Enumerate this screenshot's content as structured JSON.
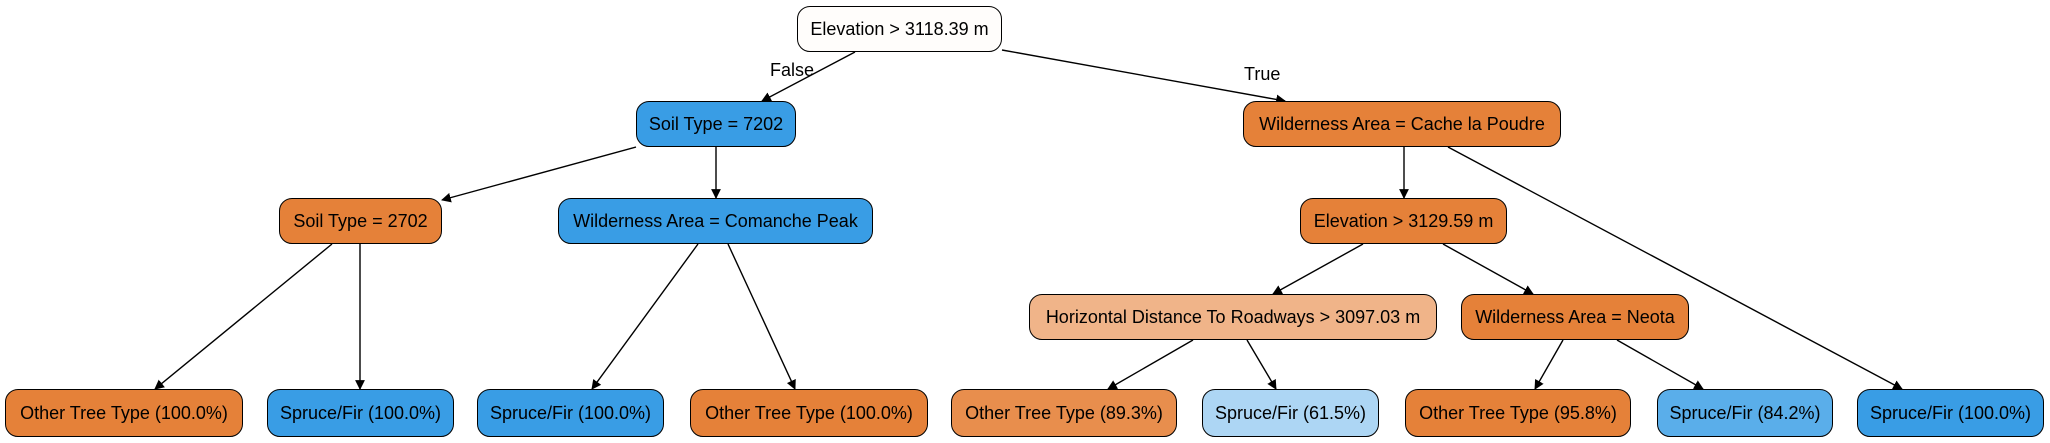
{
  "tree": {
    "colors": {
      "orange": "#e58139",
      "blue": "#399de5",
      "root": "#fffdfb",
      "light_orange": "#f0b489",
      "light_blue": "#add6f4",
      "medium_orange": "#e88e4d",
      "medium_blue": "#5aaeea"
    },
    "nodes": [
      {
        "id": "root",
        "label": "Elevation > 3118.39 m",
        "color": "root"
      },
      {
        "id": "soil7202",
        "label": "Soil Type = 7202",
        "color": "blue"
      },
      {
        "id": "wildCache",
        "label": "Wilderness Area = Cache la Poudre",
        "color": "orange"
      },
      {
        "id": "soil2702",
        "label": "Soil Type = 2702",
        "color": "orange"
      },
      {
        "id": "wildComanche",
        "label": "Wilderness Area = Comanche Peak",
        "color": "blue"
      },
      {
        "id": "elev3129",
        "label": "Elevation > 3129.59 m",
        "color": "orange"
      },
      {
        "id": "horizDist",
        "label": "Horizontal Distance To Roadways > 3097.03 m",
        "color": "light_orange"
      },
      {
        "id": "wildNeota",
        "label": "Wilderness Area = Neota",
        "color": "orange"
      },
      {
        "id": "leaf1",
        "label": "Other Tree Type (100.0%)",
        "color": "orange"
      },
      {
        "id": "leaf2",
        "label": "Spruce/Fir (100.0%)",
        "color": "blue"
      },
      {
        "id": "leaf3",
        "label": "Spruce/Fir (100.0%)",
        "color": "blue"
      },
      {
        "id": "leaf4",
        "label": "Other Tree Type (100.0%)",
        "color": "orange"
      },
      {
        "id": "leaf5",
        "label": "Other Tree Type (89.3%)",
        "color": "medium_orange"
      },
      {
        "id": "leaf6",
        "label": "Spruce/Fir (61.5%)",
        "color": "light_blue"
      },
      {
        "id": "leaf7",
        "label": "Other Tree Type (95.8%)",
        "color": "orange"
      },
      {
        "id": "leaf8",
        "label": "Spruce/Fir (84.2%)",
        "color": "medium_blue"
      },
      {
        "id": "leaf9",
        "label": "Spruce/Fir (100.0%)",
        "color": "blue"
      }
    ],
    "edges": [
      {
        "from": "root",
        "to": "soil7202",
        "label": "False"
      },
      {
        "from": "root",
        "to": "wildCache",
        "label": "True"
      },
      {
        "from": "soil7202",
        "to": "soil2702",
        "label": ""
      },
      {
        "from": "soil7202",
        "to": "wildComanche",
        "label": ""
      },
      {
        "from": "soil2702",
        "to": "leaf1",
        "label": ""
      },
      {
        "from": "soil2702",
        "to": "leaf2",
        "label": ""
      },
      {
        "from": "wildComanche",
        "to": "leaf3",
        "label": ""
      },
      {
        "from": "wildComanche",
        "to": "leaf4",
        "label": ""
      },
      {
        "from": "wildCache",
        "to": "elev3129",
        "label": ""
      },
      {
        "from": "wildCache",
        "to": "leaf9",
        "label": ""
      },
      {
        "from": "elev3129",
        "to": "horizDist",
        "label": ""
      },
      {
        "from": "elev3129",
        "to": "wildNeota",
        "label": ""
      },
      {
        "from": "horizDist",
        "to": "leaf5",
        "label": ""
      },
      {
        "from": "horizDist",
        "to": "leaf6",
        "label": ""
      },
      {
        "from": "wildNeota",
        "to": "leaf7",
        "label": ""
      },
      {
        "from": "wildNeota",
        "to": "leaf8",
        "label": ""
      }
    ]
  }
}
